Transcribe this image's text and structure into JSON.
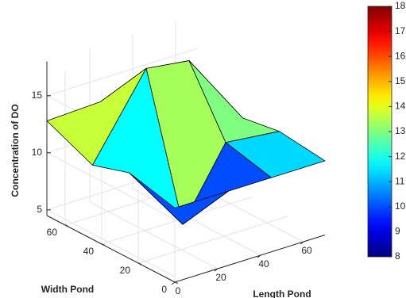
{
  "chart_data": {
    "type": "surface",
    "zlabel": "Concentration of DO",
    "xlabel": "Length Pond",
    "ylabel": "Width Pond",
    "x": [
      0,
      25,
      45,
      70
    ],
    "y": [
      0,
      25,
      45,
      70
    ],
    "z": [
      [
        11,
        11,
        11,
        11
      ],
      [
        12,
        6,
        12,
        11.5
      ],
      [
        11,
        18,
        17.5,
        11
      ],
      [
        12.8,
        13,
        12,
        11.5
      ]
    ],
    "xlim": [
      0,
      70
    ],
    "ylim": [
      0,
      70
    ],
    "zlim": [
      4.5,
      18
    ],
    "xticks": [
      0,
      20,
      40,
      60
    ],
    "yticks": [
      0,
      20,
      40,
      60
    ],
    "zticks": [
      5,
      10,
      15
    ],
    "grid": true,
    "colormap": "jet",
    "clim": [
      8,
      18
    ],
    "colorbar_ticks": [
      8,
      9,
      10,
      11,
      12,
      13,
      14,
      15,
      16,
      17,
      18
    ]
  }
}
